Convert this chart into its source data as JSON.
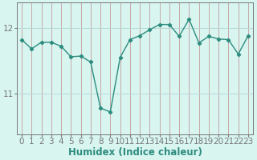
{
  "x": [
    0,
    1,
    2,
    3,
    4,
    5,
    6,
    7,
    8,
    9,
    10,
    11,
    12,
    13,
    14,
    15,
    16,
    17,
    18,
    19,
    20,
    21,
    22,
    23
  ],
  "y": [
    11.82,
    11.68,
    11.78,
    11.78,
    11.72,
    11.56,
    11.57,
    11.48,
    10.78,
    10.72,
    11.55,
    11.82,
    11.88,
    11.97,
    12.05,
    12.05,
    11.87,
    12.13,
    11.77,
    11.87,
    11.83,
    11.82,
    11.6,
    11.88
  ],
  "line_color": "#2d8c7e",
  "marker_color": "#2d8c7e",
  "bg_color": "#d8f5f0",
  "vgrid_color": "#c8a8a8",
  "hgrid_color": "#b8d8d8",
  "xlabel": "Humidex (Indice chaleur)",
  "yticks": [
    11,
    12
  ],
  "ylim": [
    10.38,
    12.38
  ],
  "xlim": [
    -0.5,
    23.5
  ],
  "axis_color": "#777777",
  "xlabel_fontsize": 8.5,
  "tick_fontsize": 7.5,
  "xlabel_color": "#2d8c7e",
  "xlabel_bold": true
}
